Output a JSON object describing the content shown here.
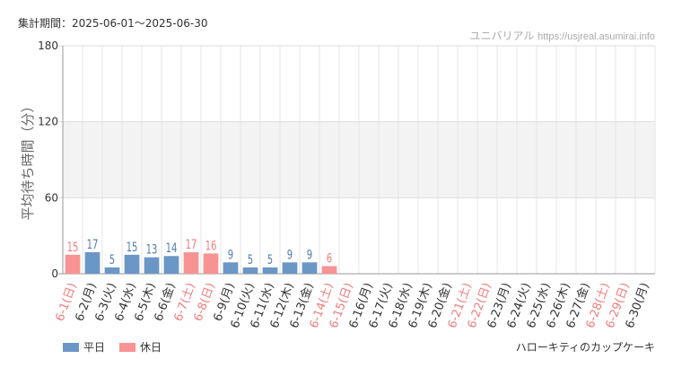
{
  "header": {
    "period_label": "集計期間：2025-06-01～2025-06-30",
    "site_name": "ユニバリアル",
    "site_url": "https://usjreal.asumirai.info"
  },
  "footer": {
    "attraction_name": "ハローキティのカップケーキ"
  },
  "legend": {
    "weekday_label": "平日",
    "holiday_label": "休日"
  },
  "colors": {
    "weekday": "#6b97c7",
    "holiday": "#f89393",
    "weekday_text": "#4f7bab",
    "holiday_text": "#f07b7b",
    "band": "#f3f3f3",
    "grid": "#e6e6e6"
  },
  "chart_data": {
    "type": "bar",
    "ylabel": "平均待ち時間（分）",
    "ylim": [
      0,
      180
    ],
    "yticks": [
      0,
      60,
      120,
      180
    ],
    "highlight_band": [
      60,
      120
    ],
    "categories": [
      "6-1(日)",
      "6-2(月)",
      "6-3(火)",
      "6-4(水)",
      "6-5(木)",
      "6-6(金)",
      "6-7(土)",
      "6-8(日)",
      "6-9(月)",
      "6-10(火)",
      "6-11(水)",
      "6-12(木)",
      "6-13(金)",
      "6-14(土)",
      "6-15(日)",
      "6-16(月)",
      "6-17(火)",
      "6-18(水)",
      "6-19(木)",
      "6-20(金)",
      "6-21(土)",
      "6-22(日)",
      "6-23(月)",
      "6-24(火)",
      "6-25(水)",
      "6-26(木)",
      "6-27(金)",
      "6-28(土)",
      "6-29(日)",
      "6-30(月)"
    ],
    "holiday": [
      true,
      false,
      false,
      false,
      false,
      false,
      true,
      true,
      false,
      false,
      false,
      false,
      false,
      true,
      true,
      false,
      false,
      false,
      false,
      false,
      true,
      true,
      false,
      false,
      false,
      false,
      false,
      true,
      true,
      false
    ],
    "values": [
      15,
      17,
      5,
      15,
      13,
      14,
      17,
      16,
      9,
      5,
      5,
      9,
      9,
      6,
      null,
      null,
      null,
      null,
      null,
      null,
      null,
      null,
      null,
      null,
      null,
      null,
      null,
      null,
      null,
      null
    ]
  }
}
